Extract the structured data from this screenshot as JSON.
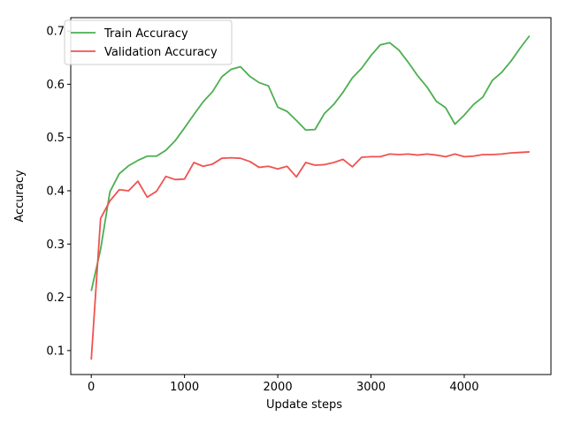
{
  "chart_data": {
    "type": "line",
    "xlabel": "Update steps",
    "ylabel": "Accuracy",
    "xlim": [
      -220,
      4930
    ],
    "ylim": [
      0.055,
      0.725
    ],
    "xticks": [
      0,
      1000,
      2000,
      3000,
      4000
    ],
    "yticks": [
      0.1,
      0.2,
      0.3,
      0.4,
      0.5,
      0.6,
      0.7
    ],
    "xtick_labels": [
      "0",
      "1000",
      "2000",
      "3000",
      "4000"
    ],
    "ytick_labels": [
      "0.1",
      "0.2",
      "0.3",
      "0.4",
      "0.5",
      "0.6",
      "0.7"
    ],
    "grid": false,
    "legend_position": "top-left",
    "x": [
      0,
      100,
      200,
      300,
      400,
      500,
      600,
      700,
      800,
      900,
      1000,
      1100,
      1200,
      1300,
      1400,
      1500,
      1600,
      1700,
      1800,
      1900,
      2000,
      2100,
      2200,
      2300,
      2400,
      2500,
      2600,
      2700,
      2800,
      2900,
      3000,
      3100,
      3200,
      3300,
      3400,
      3500,
      3600,
      3700,
      3800,
      3900,
      4000,
      4100,
      4200,
      4300,
      4400,
      4500,
      4600,
      4700
    ],
    "series": [
      {
        "name": "Train Accuracy",
        "color": "#4caf50",
        "values": [
          0.212,
          0.29,
          0.398,
          0.432,
          0.447,
          0.457,
          0.465,
          0.465,
          0.476,
          0.494,
          0.518,
          0.543,
          0.567,
          0.586,
          0.614,
          0.628,
          0.633,
          0.615,
          0.603,
          0.597,
          0.557,
          0.549,
          0.532,
          0.514,
          0.515,
          0.545,
          0.562,
          0.585,
          0.612,
          0.63,
          0.654,
          0.674,
          0.678,
          0.664,
          0.641,
          0.616,
          0.595,
          0.568,
          0.556,
          0.525,
          0.542,
          0.562,
          0.576,
          0.607,
          0.622,
          0.643,
          0.668,
          0.691
        ]
      },
      {
        "name": "Validation Accuracy",
        "color": "#ef5350",
        "values": [
          0.083,
          0.348,
          0.381,
          0.402,
          0.4,
          0.418,
          0.388,
          0.399,
          0.427,
          0.421,
          0.422,
          0.453,
          0.446,
          0.45,
          0.461,
          0.462,
          0.461,
          0.455,
          0.444,
          0.446,
          0.441,
          0.446,
          0.426,
          0.453,
          0.448,
          0.449,
          0.453,
          0.459,
          0.445,
          0.463,
          0.464,
          0.464,
          0.469,
          0.468,
          0.469,
          0.467,
          0.469,
          0.467,
          0.464,
          0.469,
          0.464,
          0.465,
          0.468,
          0.468,
          0.469,
          0.471,
          0.472,
          0.473
        ]
      }
    ]
  }
}
